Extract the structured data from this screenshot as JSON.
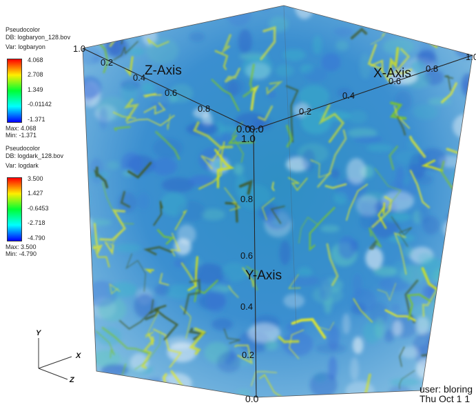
{
  "legends": [
    {
      "plot_type": "Pseudocolor",
      "db": "DB: logbaryon_128.bov",
      "var": "Var: logbaryon",
      "ticks": [
        "4.068",
        "2.708",
        "1.349",
        "-0.01142",
        "-1.371"
      ],
      "max": "Max:  4.068",
      "min": "Min:  -1.371"
    },
    {
      "plot_type": "Pseudocolor",
      "db": "DB: logdark_128.bov",
      "var": "Var: logdark",
      "ticks": [
        "3.500",
        "1.427",
        "-0.6453",
        "-2.718",
        "-4.790"
      ],
      "max": "Max:  3.500",
      "min": "Min:  -4.790"
    }
  ],
  "axes": {
    "x_title": "X-Axis",
    "y_title": "Y-Axis",
    "z_title": "Z-Axis",
    "x_ticks": [
      "0.2",
      "0.4",
      "0.6",
      "0.8",
      "1.0"
    ],
    "y_ticks": [
      "0.0",
      "0.2",
      "0.4",
      "0.6",
      "0.8",
      "1.0"
    ],
    "z_ticks": [
      "0.0",
      "0.2",
      "0.4",
      "0.6",
      "0.8",
      "1.0"
    ],
    "origin_label_x": "0.0",
    "origin_label_z": "0.0"
  },
  "triad": {
    "x": "X",
    "y": "Y",
    "z": "Z"
  },
  "user_info": {
    "user": "user: bloring",
    "date": "Thu Oct 1 1"
  },
  "colors": {
    "volume_blue": "#3a6fd8",
    "volume_cyan": "#39b6c9",
    "filament_yellow": "#d7e21a",
    "filament_green": "#7cc42b"
  }
}
